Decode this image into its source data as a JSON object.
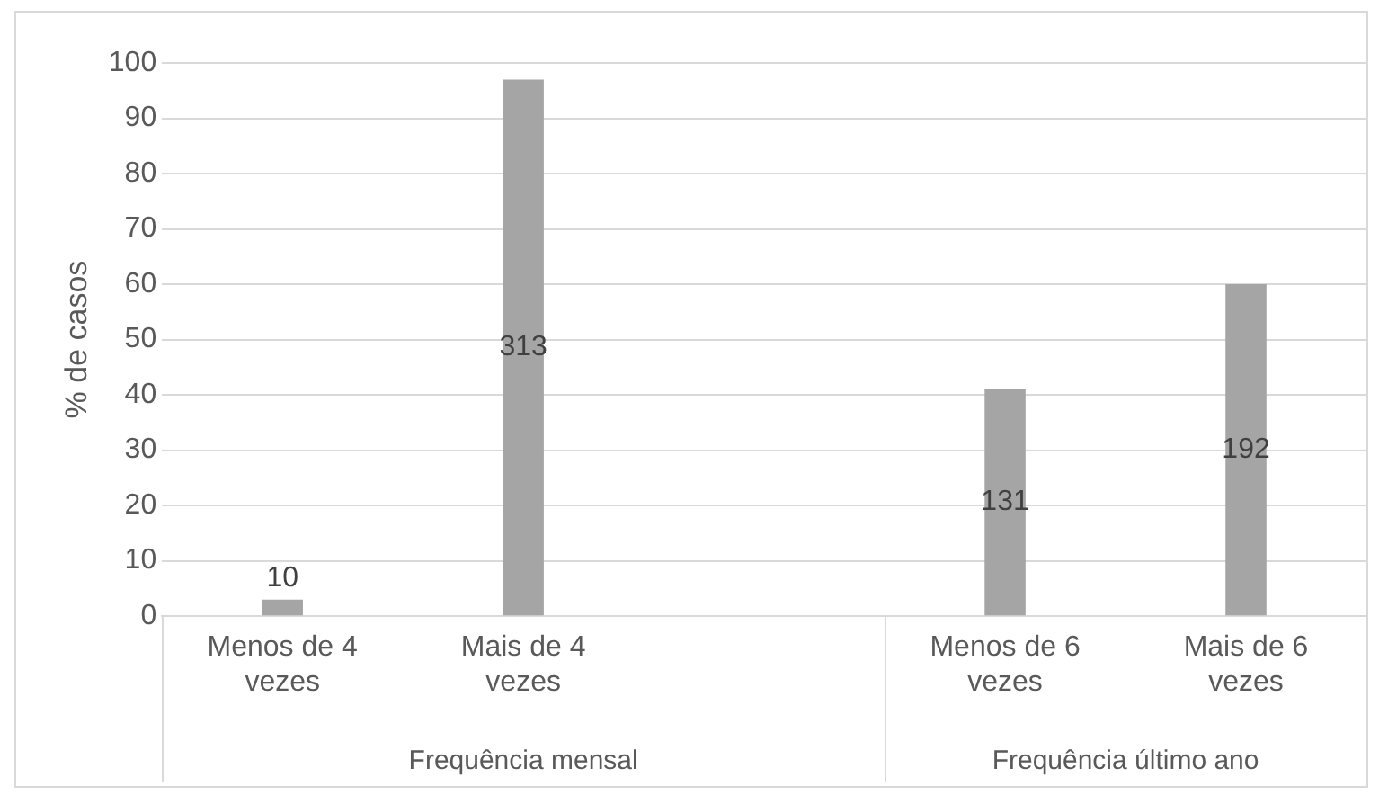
{
  "chart_data": {
    "type": "bar",
    "ylabel": "% de casos",
    "categories": [
      "Menos de 4 vezes",
      "Mais de 4 vezes",
      null,
      "Menos de 6 vezes",
      "Mais de 6 vezes"
    ],
    "values": [
      3,
      97,
      null,
      41,
      60
    ],
    "color": "#a5a5a5",
    "ylim": [
      0,
      100
    ],
    "yticks": [
      0,
      10,
      20,
      30,
      40,
      50,
      60,
      70,
      80,
      90,
      100
    ],
    "grid": "y",
    "annotations": [
      "Frequência mensal",
      "Frequência último ano",
      "10",
      "313",
      "131",
      "192"
    ]
  }
}
